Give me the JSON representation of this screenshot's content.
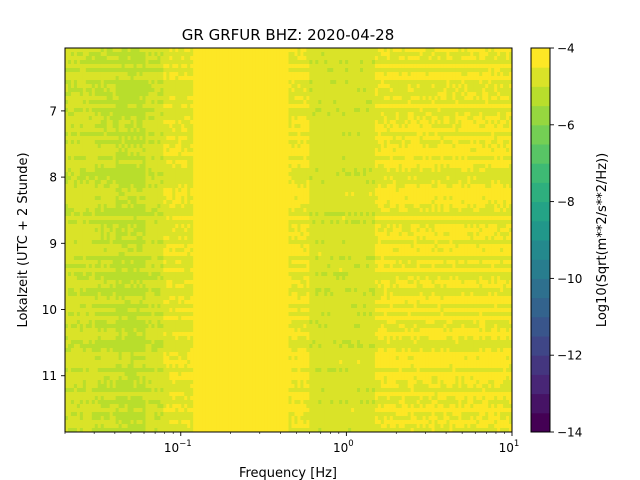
{
  "chart_data": {
    "type": "heatmap",
    "title": "GR GRFUR  BHZ: 2020-04-28",
    "xlabel": "Frequency [Hz]",
    "ylabel": "Lokalzeit (UTC + 2 Stunde)",
    "xscale": "log",
    "xlim": [
      0.02,
      10
    ],
    "x_ticks": [
      {
        "value": 0.1,
        "base": "10",
        "exp": "−1"
      },
      {
        "value": 1,
        "base": "10",
        "exp": "0"
      },
      {
        "value": 10,
        "base": "10",
        "exp": "1"
      }
    ],
    "ylim": [
      11.85,
      6.05
    ],
    "y_ticks": [
      7,
      8,
      9,
      10,
      11
    ],
    "colorbar": {
      "label": "Log10(Sqrt(m**2/s**2/Hz))",
      "range": [
        -14,
        -4
      ],
      "ticks": [
        -4,
        -6,
        -8,
        -10,
        -12,
        -14
      ],
      "tick_labels": [
        "−4",
        "−6",
        "−8",
        "−10",
        "−12",
        "−14"
      ],
      "colormap": "viridis",
      "levels": 20
    },
    "band_profile": {
      "description_values": "approximate log10 amplitude by frequency band",
      "bands": [
        {
          "f_from": 0.02,
          "f_to": 0.03,
          "value": -4.9
        },
        {
          "f_from": 0.03,
          "f_to": 0.04,
          "value": -5.0
        },
        {
          "f_from": 0.04,
          "f_to": 0.06,
          "value": -5.1
        },
        {
          "f_from": 0.06,
          "f_to": 0.08,
          "value": -4.9
        },
        {
          "f_from": 0.08,
          "f_to": 0.12,
          "value": -4.6
        },
        {
          "f_from": 0.12,
          "f_to": 0.45,
          "value": -4.1
        },
        {
          "f_from": 0.45,
          "f_to": 0.6,
          "value": -4.5
        },
        {
          "f_from": 0.6,
          "f_to": 1.5,
          "value": -4.8
        },
        {
          "f_from": 1.5,
          "f_to": 10,
          "value": -4.5
        }
      ]
    }
  }
}
